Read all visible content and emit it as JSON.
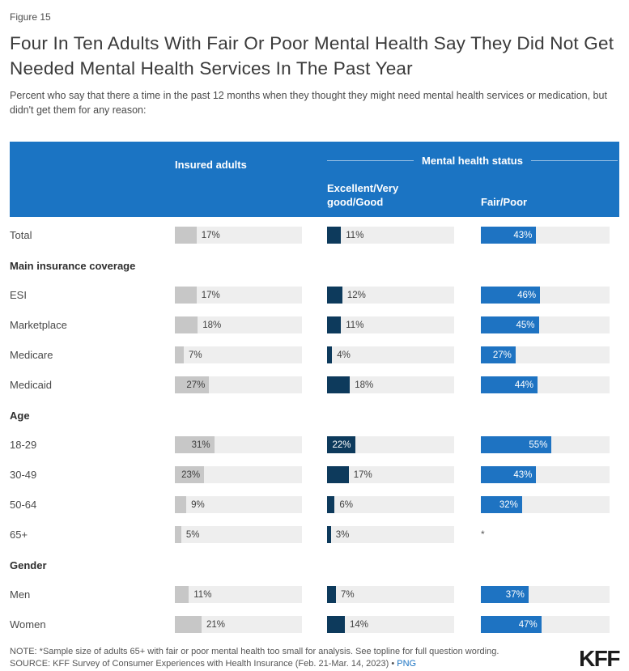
{
  "figure_label": "Figure 15",
  "title": "Four In Ten Adults With Fair Or Poor Mental Health Say They Did Not Get Needed Mental Health Services In The Past Year",
  "subtitle": "Percent who say that there a time in the past 12 months when they thought they might need mental health services or medication, but didn't get them for any reason:",
  "table": {
    "group_header": "Mental health status",
    "columns": [
      "Insured adults",
      "Excellent/Very good/Good",
      "Fair/Poor"
    ],
    "rows": [
      {
        "kind": "data",
        "label": "Total",
        "values": [
          17,
          11,
          43
        ]
      },
      {
        "kind": "section",
        "label": "Main insurance coverage"
      },
      {
        "kind": "data",
        "label": "ESI",
        "values": [
          17,
          12,
          46
        ]
      },
      {
        "kind": "data",
        "label": "Marketplace",
        "values": [
          18,
          11,
          45
        ]
      },
      {
        "kind": "data",
        "label": "Medicare",
        "values": [
          7,
          4,
          27
        ]
      },
      {
        "kind": "data",
        "label": "Medicaid",
        "values": [
          27,
          18,
          44
        ]
      },
      {
        "kind": "section",
        "label": "Age"
      },
      {
        "kind": "data",
        "label": "18-29",
        "values": [
          31,
          22,
          55
        ]
      },
      {
        "kind": "data",
        "label": "30-49",
        "values": [
          23,
          17,
          43
        ]
      },
      {
        "kind": "data",
        "label": "50-64",
        "values": [
          9,
          6,
          32
        ]
      },
      {
        "kind": "data",
        "label": "65+",
        "values": [
          5,
          3,
          null
        ]
      },
      {
        "kind": "section",
        "label": "Gender"
      },
      {
        "kind": "data",
        "label": "Men",
        "values": [
          11,
          7,
          37
        ]
      },
      {
        "kind": "data",
        "label": "Women",
        "values": [
          21,
          14,
          47
        ]
      }
    ]
  },
  "footnote_symbol": "*",
  "note": "NOTE: *Sample size of adults 65+ with fair or poor mental health too small for analysis. See topline for full question wording.",
  "source_prefix": "SOURCE: KFF Survey of Consumer Experiences with Health Insurance (Feb. 21-Mar. 14, 2023) • ",
  "source_link": "PNG",
  "logo": "KFF",
  "colors": {
    "band": "#1b74c3",
    "bar_gray": "#c7c7c7",
    "bar_navy": "#0d3a5c",
    "bar_blue": "#1e73c2",
    "track": "#eeeeee",
    "link": "#1a73c2"
  },
  "label_inside_threshold": 22,
  "chart_data": {
    "type": "bar",
    "orientation": "horizontal",
    "title": "Four In Ten Adults With Fair Or Poor Mental Health Say They Did Not Get Needed Mental Health Services In The Past Year",
    "subtitle": "Percent who say that there a time in the past 12 months when they thought they might need mental health services or medication, but didn't get them for any reason:",
    "group_header": "Mental health status",
    "categories": [
      "Total",
      "ESI",
      "Marketplace",
      "Medicare",
      "Medicaid",
      "18-29",
      "30-49",
      "50-64",
      "65+",
      "Men",
      "Women"
    ],
    "category_groups": [
      {
        "label": "Main insurance coverage",
        "categories": [
          "ESI",
          "Marketplace",
          "Medicare",
          "Medicaid"
        ]
      },
      {
        "label": "Age",
        "categories": [
          "18-29",
          "30-49",
          "50-64",
          "65+"
        ]
      },
      {
        "label": "Gender",
        "categories": [
          "Men",
          "Women"
        ]
      }
    ],
    "series": [
      {
        "name": "Insured adults",
        "values": [
          17,
          17,
          18,
          7,
          27,
          31,
          23,
          9,
          5,
          11,
          21
        ]
      },
      {
        "name": "Excellent/Very good/Good",
        "values": [
          11,
          12,
          11,
          4,
          18,
          22,
          17,
          6,
          3,
          7,
          14
        ]
      },
      {
        "name": "Fair/Poor",
        "values": [
          43,
          46,
          45,
          27,
          44,
          55,
          43,
          32,
          null,
          37,
          47
        ]
      }
    ],
    "value_format": "percent",
    "xlim": [
      0,
      100
    ],
    "annotations": [
      "* Fair/Poor value for 65+ suppressed: sample size too small for analysis"
    ]
  }
}
